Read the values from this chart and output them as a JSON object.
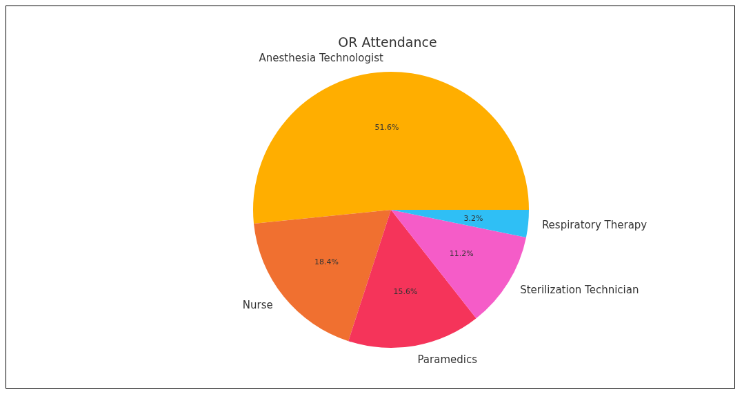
{
  "chart_data": {
    "type": "pie",
    "title": "OR Attendance",
    "categories": [
      "Anesthesia Technologist",
      "Nurse",
      "Paramedics",
      "Sterilization Technician",
      "Respiratory Therapy"
    ],
    "values": [
      51.6,
      18.4,
      15.6,
      11.2,
      3.2
    ],
    "value_labels": [
      "51.6%",
      "18.4%",
      "15.6%",
      "11.2%",
      "3.2%"
    ],
    "colors": [
      "#ffae00",
      "#f07030",
      "#f5345a",
      "#f55cc8",
      "#2fbff5"
    ]
  }
}
